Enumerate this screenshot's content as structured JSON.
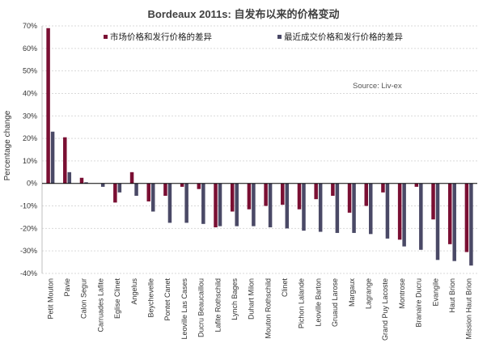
{
  "chart_data": {
    "type": "bar",
    "title": "Bordeaux 2011s: 自发布以来的价格变动",
    "ylabel": "Percentage change",
    "xlabel": "",
    "source": "Source: Liv-ex",
    "ylim": [
      -40,
      70
    ],
    "y_ticks": [
      "70%",
      "60%",
      "50%",
      "40%",
      "30%",
      "20%",
      "10%",
      "0%",
      "-10%",
      "-20%",
      "-30%",
      "-40%"
    ],
    "y_tick_values": [
      70,
      60,
      50,
      40,
      30,
      20,
      10,
      0,
      -10,
      -20,
      -30,
      -40
    ],
    "grid": true,
    "legend_position": "top",
    "categories": [
      "Petit Mouton",
      "Pavie",
      "Calon Segur",
      "Carruades Lafite",
      "Eglise Clinet",
      "Angelus",
      "Beychevelle",
      "Pontet Canet",
      "Leoville Las Cases",
      "Ducru Beaucaillou",
      "Lafite Rothschild",
      "Lynch Bages",
      "Duhart Milon",
      "Mouton Rothschild",
      "Clinet",
      "Pichon Lalande",
      "Leoville Barton",
      "Gruaud Larose",
      "Margaux",
      "Lagrange",
      "Grand Puy Lacoste",
      "Montrose",
      "Branaire Ducru",
      "Evangile",
      "Haut Brion",
      "Mission Haut Brion"
    ],
    "series": [
      {
        "name": "市场价格和发行价格的差异",
        "color": "#7a0f33",
        "values": [
          69,
          20.5,
          2.5,
          0,
          -8.5,
          5,
          -8,
          -5.5,
          -1.5,
          -2.5,
          -19.5,
          -12.5,
          -11.5,
          -10,
          -9.5,
          -11.5,
          -7,
          -5.5,
          -13,
          -10,
          -4,
          -25,
          -1.5,
          -16,
          -27,
          -30.5
        ]
      },
      {
        "name": "最近成交价格和发行价格的差异",
        "color": "#4a4966",
        "values": [
          23,
          5,
          0.5,
          -1.5,
          -4,
          -5.5,
          -12.5,
          -17.5,
          -17.5,
          -18,
          -19,
          -19,
          -19,
          -19.5,
          -20,
          -21,
          -21.5,
          -22,
          -22,
          -22.5,
          -24.5,
          -28,
          -29.5,
          -34,
          -34.5,
          -36.5
        ]
      }
    ]
  }
}
